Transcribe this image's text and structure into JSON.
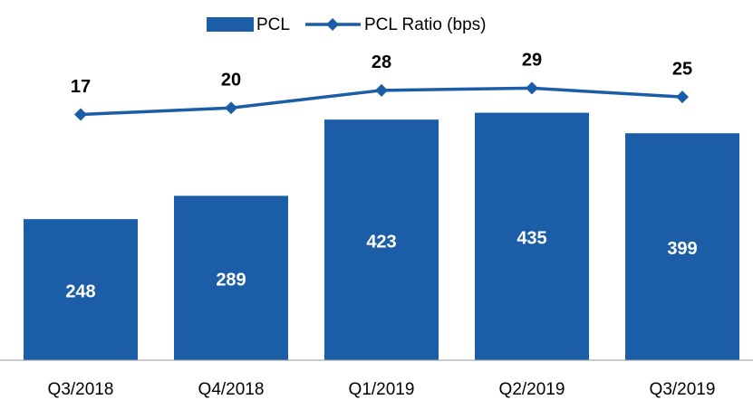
{
  "chart_data": {
    "type": "bar_line",
    "categories": [
      "Q3/2018",
      "Q4/2018",
      "Q1/2019",
      "Q2/2019",
      "Q3/2019"
    ],
    "series": [
      {
        "name": "PCL",
        "type": "bar",
        "color": "#1b5ea7",
        "values": [
          248,
          289,
          423,
          435,
          399
        ]
      },
      {
        "name": "PCL Ratio (bps)",
        "type": "line",
        "axis": "y2",
        "color": "#1b5ea7",
        "values": [
          17,
          20,
          28,
          29,
          25
        ]
      }
    ],
    "ylim": [
      0,
      540
    ],
    "y2lim": [
      -95,
      45
    ],
    "legend": "top"
  }
}
